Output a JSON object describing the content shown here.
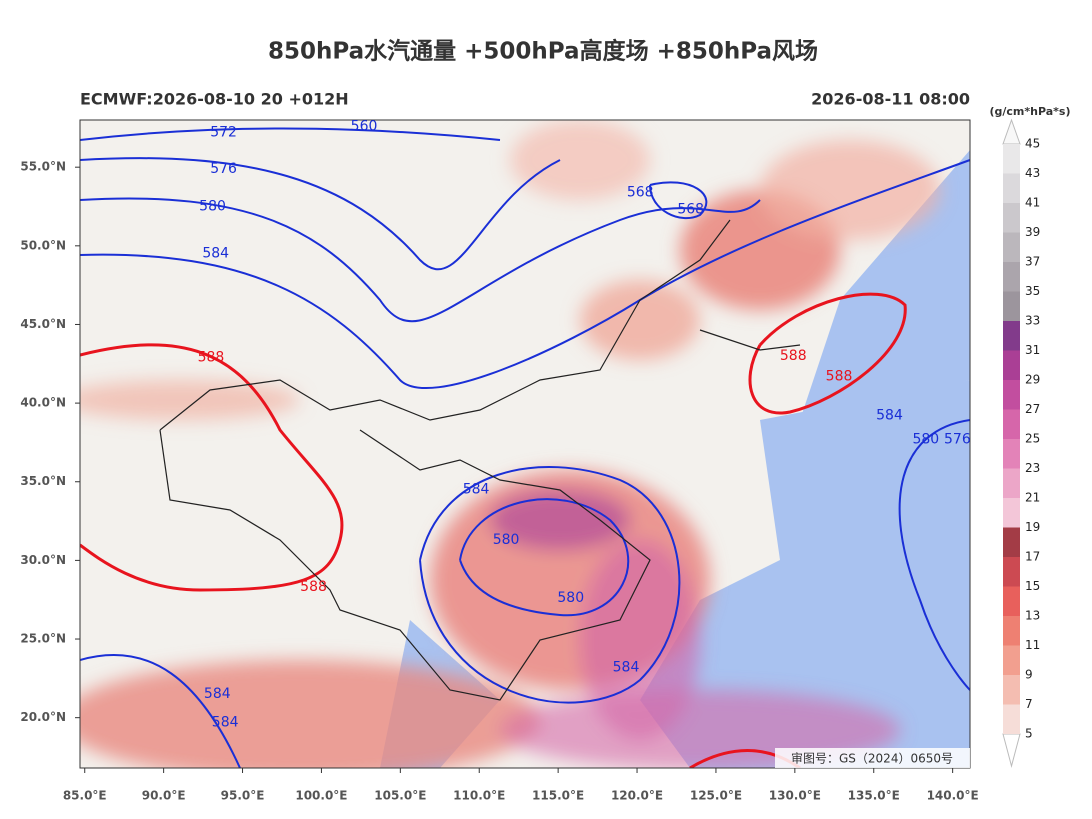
{
  "header": {
    "title": "850hPa水汽通量 +500hPa高度场 +850hPa风场",
    "run": "ECMWF:2026-08-10 20 +012H",
    "valid": "2026-08-11 08:00",
    "unit": "(g/cm*hPa*s)"
  },
  "map": {
    "xlim": [
      84.7,
      141.1
    ],
    "ylim": [
      16.8,
      58
    ],
    "xticks": [
      {
        "value": 85,
        "label": "85.0°E"
      },
      {
        "value": 90,
        "label": "90.0°E"
      },
      {
        "value": 95,
        "label": "95.0°E"
      },
      {
        "value": 100,
        "label": "100.0°E"
      },
      {
        "value": 105,
        "label": "105.0°E"
      },
      {
        "value": 110,
        "label": "110.0°E"
      },
      {
        "value": 115,
        "label": "115.0°E"
      },
      {
        "value": 120,
        "label": "120.0°E"
      },
      {
        "value": 125,
        "label": "125.0°E"
      },
      {
        "value": 130,
        "label": "130.0°E"
      },
      {
        "value": 135,
        "label": "135.0°E"
      },
      {
        "value": 140,
        "label": "140.0°E"
      }
    ],
    "yticks": [
      {
        "value": 20,
        "label": "20.0°N"
      },
      {
        "value": 25,
        "label": "25.0°N"
      },
      {
        "value": 30,
        "label": "30.0°N"
      },
      {
        "value": 35,
        "label": "35.0°N"
      },
      {
        "value": 40,
        "label": "40.0°N"
      },
      {
        "value": 45,
        "label": "45.0°N"
      },
      {
        "value": 50,
        "label": "50.0°N"
      },
      {
        "value": 55,
        "label": "55.0°N"
      }
    ],
    "contour_labels": [
      {
        "value": 572,
        "color": "#1a2fd6",
        "lon": 93.8,
        "lat": 57.2
      },
      {
        "value": 560,
        "color": "#1a2fd6",
        "lon": 102.7,
        "lat": 57.6
      },
      {
        "value": 576,
        "color": "#1a2fd6",
        "lon": 93.8,
        "lat": 54.9
      },
      {
        "value": 580,
        "color": "#1a2fd6",
        "lon": 93.1,
        "lat": 52.5
      },
      {
        "value": 584,
        "color": "#1a2fd6",
        "lon": 93.3,
        "lat": 49.5
      },
      {
        "value": 568,
        "color": "#1a2fd6",
        "lon": 120.2,
        "lat": 53.4
      },
      {
        "value": 568,
        "color": "#1a2fd6",
        "lon": 123.4,
        "lat": 52.3
      },
      {
        "value": 588,
        "color": "#e8141e",
        "lon": 93.0,
        "lat": 42.9
      },
      {
        "value": 588,
        "color": "#e8141e",
        "lon": 129.9,
        "lat": 43.0
      },
      {
        "value": 588,
        "color": "#e8141e",
        "lon": 132.8,
        "lat": 41.7
      },
      {
        "value": 584,
        "color": "#1a2fd6",
        "lon": 136.0,
        "lat": 39.2
      },
      {
        "value": 580,
        "color": "#1a2fd6",
        "lon": 138.3,
        "lat": 37.7
      },
      {
        "value": 576,
        "color": "#1a2fd6",
        "lon": 140.3,
        "lat": 37.7
      },
      {
        "value": 584,
        "color": "#1a2fd6",
        "lon": 109.8,
        "lat": 34.5
      },
      {
        "value": 580,
        "color": "#1a2fd6",
        "lon": 111.7,
        "lat": 31.3
      },
      {
        "value": 580,
        "color": "#1a2fd6",
        "lon": 115.8,
        "lat": 27.6
      },
      {
        "value": 584,
        "color": "#1a2fd6",
        "lon": 119.3,
        "lat": 23.2
      },
      {
        "value": 588,
        "color": "#e8141e",
        "lon": 99.5,
        "lat": 28.3
      },
      {
        "value": 584,
        "color": "#1a2fd6",
        "lon": 93.4,
        "lat": 21.5
      },
      {
        "value": 584,
        "color": "#1a2fd6",
        "lon": 93.9,
        "lat": 19.7
      }
    ],
    "stamp": "审图号：GS（2024）0650号"
  },
  "colorbar": {
    "levels": [
      5,
      7,
      9,
      11,
      13,
      15,
      17,
      19,
      21,
      23,
      25,
      27,
      29,
      31,
      33,
      35,
      37,
      39,
      41,
      43,
      45
    ],
    "colors": [
      "#f6ddd8",
      "#f4bdb1",
      "#f29f8f",
      "#ee8072",
      "#e8605c",
      "#cc4a52",
      "#a33c46",
      "#f3c6d8",
      "#eca6c8",
      "#e383b8",
      "#d666aa",
      "#c24e9f",
      "#aa3f95",
      "#823b8b",
      "#9c959d",
      "#aba5ac",
      "#bbb7bc",
      "#cbc8cc",
      "#dbd9dc",
      "#e9e8e9"
    ]
  }
}
